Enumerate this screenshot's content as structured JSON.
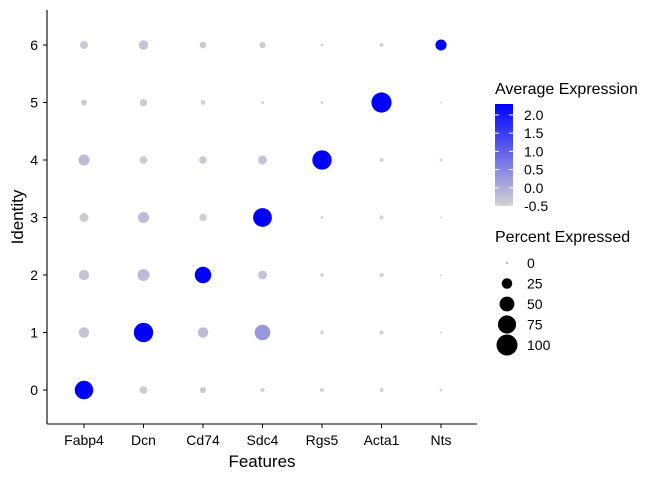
{
  "chart_data": {
    "type": "dotplot",
    "xlabel": "Features",
    "ylabel": "Identity",
    "features": [
      "Fabp4",
      "Dcn",
      "Cd74",
      "Sdc4",
      "Rgs5",
      "Acta1",
      "Nts"
    ],
    "identities": [
      "0",
      "1",
      "2",
      "3",
      "4",
      "5",
      "6"
    ],
    "points": [
      {
        "identity": "0",
        "feature": "Fabp4",
        "avg_exp": 2.3,
        "pct_exp": 78
      },
      {
        "identity": "0",
        "feature": "Dcn",
        "avg_exp": -0.4,
        "pct_exp": 14
      },
      {
        "identity": "0",
        "feature": "Cd74",
        "avg_exp": -0.4,
        "pct_exp": 9
      },
      {
        "identity": "0",
        "feature": "Sdc4",
        "avg_exp": -0.5,
        "pct_exp": 4
      },
      {
        "identity": "0",
        "feature": "Rgs5",
        "avg_exp": -0.5,
        "pct_exp": 4
      },
      {
        "identity": "0",
        "feature": "Acta1",
        "avg_exp": -0.5,
        "pct_exp": 4
      },
      {
        "identity": "0",
        "feature": "Nts",
        "avg_exp": -0.5,
        "pct_exp": 2
      },
      {
        "identity": "1",
        "feature": "Fabp4",
        "avg_exp": -0.3,
        "pct_exp": 25
      },
      {
        "identity": "1",
        "feature": "Dcn",
        "avg_exp": 2.3,
        "pct_exp": 85
      },
      {
        "identity": "1",
        "feature": "Cd74",
        "avg_exp": -0.2,
        "pct_exp": 25
      },
      {
        "identity": "1",
        "feature": "Sdc4",
        "avg_exp": 0.3,
        "pct_exp": 55
      },
      {
        "identity": "1",
        "feature": "Rgs5",
        "avg_exp": -0.5,
        "pct_exp": 3
      },
      {
        "identity": "1",
        "feature": "Acta1",
        "avg_exp": -0.5,
        "pct_exp": 4
      },
      {
        "identity": "1",
        "feature": "Nts",
        "avg_exp": -0.5,
        "pct_exp": 1
      },
      {
        "identity": "2",
        "feature": "Fabp4",
        "avg_exp": -0.3,
        "pct_exp": 24
      },
      {
        "identity": "2",
        "feature": "Dcn",
        "avg_exp": -0.2,
        "pct_exp": 33
      },
      {
        "identity": "2",
        "feature": "Cd74",
        "avg_exp": 2.3,
        "pct_exp": 62
      },
      {
        "identity": "2",
        "feature": "Sdc4",
        "avg_exp": -0.3,
        "pct_exp": 18
      },
      {
        "identity": "2",
        "feature": "Rgs5",
        "avg_exp": -0.5,
        "pct_exp": 3
      },
      {
        "identity": "2",
        "feature": "Acta1",
        "avg_exp": -0.5,
        "pct_exp": 4
      },
      {
        "identity": "2",
        "feature": "Nts",
        "avg_exp": -0.5,
        "pct_exp": 1
      },
      {
        "identity": "3",
        "feature": "Fabp4",
        "avg_exp": -0.4,
        "pct_exp": 18
      },
      {
        "identity": "3",
        "feature": "Dcn",
        "avg_exp": -0.2,
        "pct_exp": 28
      },
      {
        "identity": "3",
        "feature": "Cd74",
        "avg_exp": -0.4,
        "pct_exp": 12
      },
      {
        "identity": "3",
        "feature": "Sdc4",
        "avg_exp": 2.3,
        "pct_exp": 80
      },
      {
        "identity": "3",
        "feature": "Rgs5",
        "avg_exp": -0.5,
        "pct_exp": 2
      },
      {
        "identity": "3",
        "feature": "Acta1",
        "avg_exp": -0.5,
        "pct_exp": 4
      },
      {
        "identity": "3",
        "feature": "Nts",
        "avg_exp": -0.5,
        "pct_exp": 1
      },
      {
        "identity": "4",
        "feature": "Fabp4",
        "avg_exp": -0.2,
        "pct_exp": 28
      },
      {
        "identity": "4",
        "feature": "Dcn",
        "avg_exp": -0.4,
        "pct_exp": 14
      },
      {
        "identity": "4",
        "feature": "Cd74",
        "avg_exp": -0.4,
        "pct_exp": 14
      },
      {
        "identity": "4",
        "feature": "Sdc4",
        "avg_exp": -0.3,
        "pct_exp": 18
      },
      {
        "identity": "4",
        "feature": "Rgs5",
        "avg_exp": 2.3,
        "pct_exp": 85
      },
      {
        "identity": "4",
        "feature": "Acta1",
        "avg_exp": -0.5,
        "pct_exp": 4
      },
      {
        "identity": "4",
        "feature": "Nts",
        "avg_exp": -0.5,
        "pct_exp": 2
      },
      {
        "identity": "5",
        "feature": "Fabp4",
        "avg_exp": -0.4,
        "pct_exp": 8
      },
      {
        "identity": "5",
        "feature": "Dcn",
        "avg_exp": -0.4,
        "pct_exp": 12
      },
      {
        "identity": "5",
        "feature": "Cd74",
        "avg_exp": -0.5,
        "pct_exp": 5
      },
      {
        "identity": "5",
        "feature": "Sdc4",
        "avg_exp": -0.5,
        "pct_exp": 2
      },
      {
        "identity": "5",
        "feature": "Rgs5",
        "avg_exp": -0.5,
        "pct_exp": 2
      },
      {
        "identity": "5",
        "feature": "Acta1",
        "avg_exp": 2.3,
        "pct_exp": 92
      },
      {
        "identity": "5",
        "feature": "Nts",
        "avg_exp": -0.5,
        "pct_exp": 1
      },
      {
        "identity": "6",
        "feature": "Fabp4",
        "avg_exp": -0.4,
        "pct_exp": 15
      },
      {
        "identity": "6",
        "feature": "Dcn",
        "avg_exp": -0.3,
        "pct_exp": 20
      },
      {
        "identity": "6",
        "feature": "Cd74",
        "avg_exp": -0.4,
        "pct_exp": 10
      },
      {
        "identity": "6",
        "feature": "Sdc4",
        "avg_exp": -0.4,
        "pct_exp": 9
      },
      {
        "identity": "6",
        "feature": "Rgs5",
        "avg_exp": -0.5,
        "pct_exp": 2
      },
      {
        "identity": "6",
        "feature": "Acta1",
        "avg_exp": -0.5,
        "pct_exp": 4
      },
      {
        "identity": "6",
        "feature": "Nts",
        "avg_exp": 2.3,
        "pct_exp": 28
      }
    ],
    "color_legend": {
      "title": "Average Expression",
      "ticks": [
        "2.0",
        "1.5",
        "1.0",
        "0.5",
        "0.0",
        "-0.5"
      ],
      "range": [
        -0.5,
        2.3
      ],
      "low_color": "#d3d3d3",
      "high_color": "#0000ff"
    },
    "size_legend": {
      "title": "Percent Expressed",
      "labels": [
        "0",
        "25",
        "50",
        "75",
        "100"
      ],
      "values": [
        0,
        25,
        50,
        75,
        100
      ]
    },
    "grid": false,
    "legend_position": "right"
  }
}
